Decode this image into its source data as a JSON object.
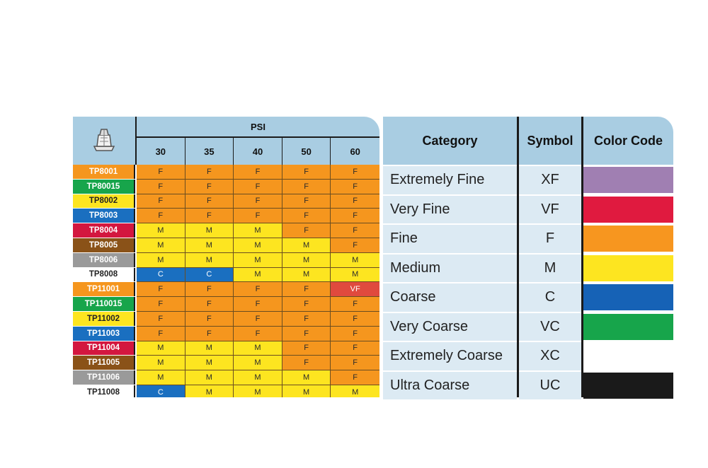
{
  "header": {
    "nozzle_icon": "spray-nozzle-icon",
    "psi_title": "PSI",
    "psi_values": [
      "30",
      "35",
      "40",
      "50",
      "60"
    ]
  },
  "colors": {
    "F": "#f5961e",
    "M": "#fde520",
    "C": "#1a6fc0",
    "VF": "#e04a3e",
    "header_bg": "#a9cde2",
    "legend_bg": "#dceaf3"
  },
  "nozzles": [
    {
      "name": "TP8001",
      "color": "#f5961e",
      "text": "#ffffff",
      "sizes": [
        "F",
        "F",
        "F",
        "F",
        "F"
      ]
    },
    {
      "name": "TP80015",
      "color": "#17a54b",
      "text": "#ffffff",
      "sizes": [
        "F",
        "F",
        "F",
        "F",
        "F"
      ]
    },
    {
      "name": "TP8002",
      "color": "#fde520",
      "text": "#222222",
      "sizes": [
        "F",
        "F",
        "F",
        "F",
        "F"
      ]
    },
    {
      "name": "TP8003",
      "color": "#1a6fc0",
      "text": "#ffffff",
      "sizes": [
        "F",
        "F",
        "F",
        "F",
        "F"
      ]
    },
    {
      "name": "TP8004",
      "color": "#d3173f",
      "text": "#ffffff",
      "sizes": [
        "M",
        "M",
        "M",
        "F",
        "F"
      ]
    },
    {
      "name": "TP8005",
      "color": "#8a5218",
      "text": "#ffffff",
      "sizes": [
        "M",
        "M",
        "M",
        "M",
        "F"
      ]
    },
    {
      "name": "TP8006",
      "color": "#9a9a9a",
      "text": "#ffffff",
      "sizes": [
        "M",
        "M",
        "M",
        "M",
        "M"
      ]
    },
    {
      "name": "TP8008",
      "color": "#ffffff",
      "text": "#222222",
      "sizes": [
        "C",
        "C",
        "M",
        "M",
        "M"
      ]
    },
    {
      "name": "TP11001",
      "color": "#f5961e",
      "text": "#ffffff",
      "sizes": [
        "F",
        "F",
        "F",
        "F",
        "VF"
      ]
    },
    {
      "name": "TP110015",
      "color": "#17a54b",
      "text": "#ffffff",
      "sizes": [
        "F",
        "F",
        "F",
        "F",
        "F"
      ]
    },
    {
      "name": "TP11002",
      "color": "#fde520",
      "text": "#222222",
      "sizes": [
        "F",
        "F",
        "F",
        "F",
        "F"
      ]
    },
    {
      "name": "TP11003",
      "color": "#1a6fc0",
      "text": "#ffffff",
      "sizes": [
        "F",
        "F",
        "F",
        "F",
        "F"
      ]
    },
    {
      "name": "TP11004",
      "color": "#d3173f",
      "text": "#ffffff",
      "sizes": [
        "M",
        "M",
        "M",
        "F",
        "F"
      ]
    },
    {
      "name": "TP11005",
      "color": "#8a5218",
      "text": "#ffffff",
      "sizes": [
        "M",
        "M",
        "M",
        "F",
        "F"
      ]
    },
    {
      "name": "TP11006",
      "color": "#9a9a9a",
      "text": "#ffffff",
      "sizes": [
        "M",
        "M",
        "M",
        "M",
        "F"
      ]
    },
    {
      "name": "TP11008",
      "color": "#ffffff",
      "text": "#222222",
      "sizes": [
        "C",
        "M",
        "M",
        "M",
        "M"
      ]
    }
  ],
  "legend": {
    "headers": {
      "category": "Category",
      "symbol": "Symbol",
      "color": "Color Code"
    },
    "rows": [
      {
        "category": "Extremely Fine",
        "symbol": "XF",
        "color": "#a07fb2"
      },
      {
        "category": "Very Fine",
        "symbol": "VF",
        "color": "#e01a3f"
      },
      {
        "category": "Fine",
        "symbol": "F",
        "color": "#f7961f"
      },
      {
        "category": "Medium",
        "symbol": "M",
        "color": "#fde520"
      },
      {
        "category": "Coarse",
        "symbol": "C",
        "color": "#1662b6"
      },
      {
        "category": "Very Coarse",
        "symbol": "VC",
        "color": "#17a54b"
      },
      {
        "category": "Extremely Coarse",
        "symbol": "XC",
        "color": "#ffffff"
      },
      {
        "category": "Ultra Coarse",
        "symbol": "UC",
        "color": "#1a1a1a"
      }
    ]
  }
}
